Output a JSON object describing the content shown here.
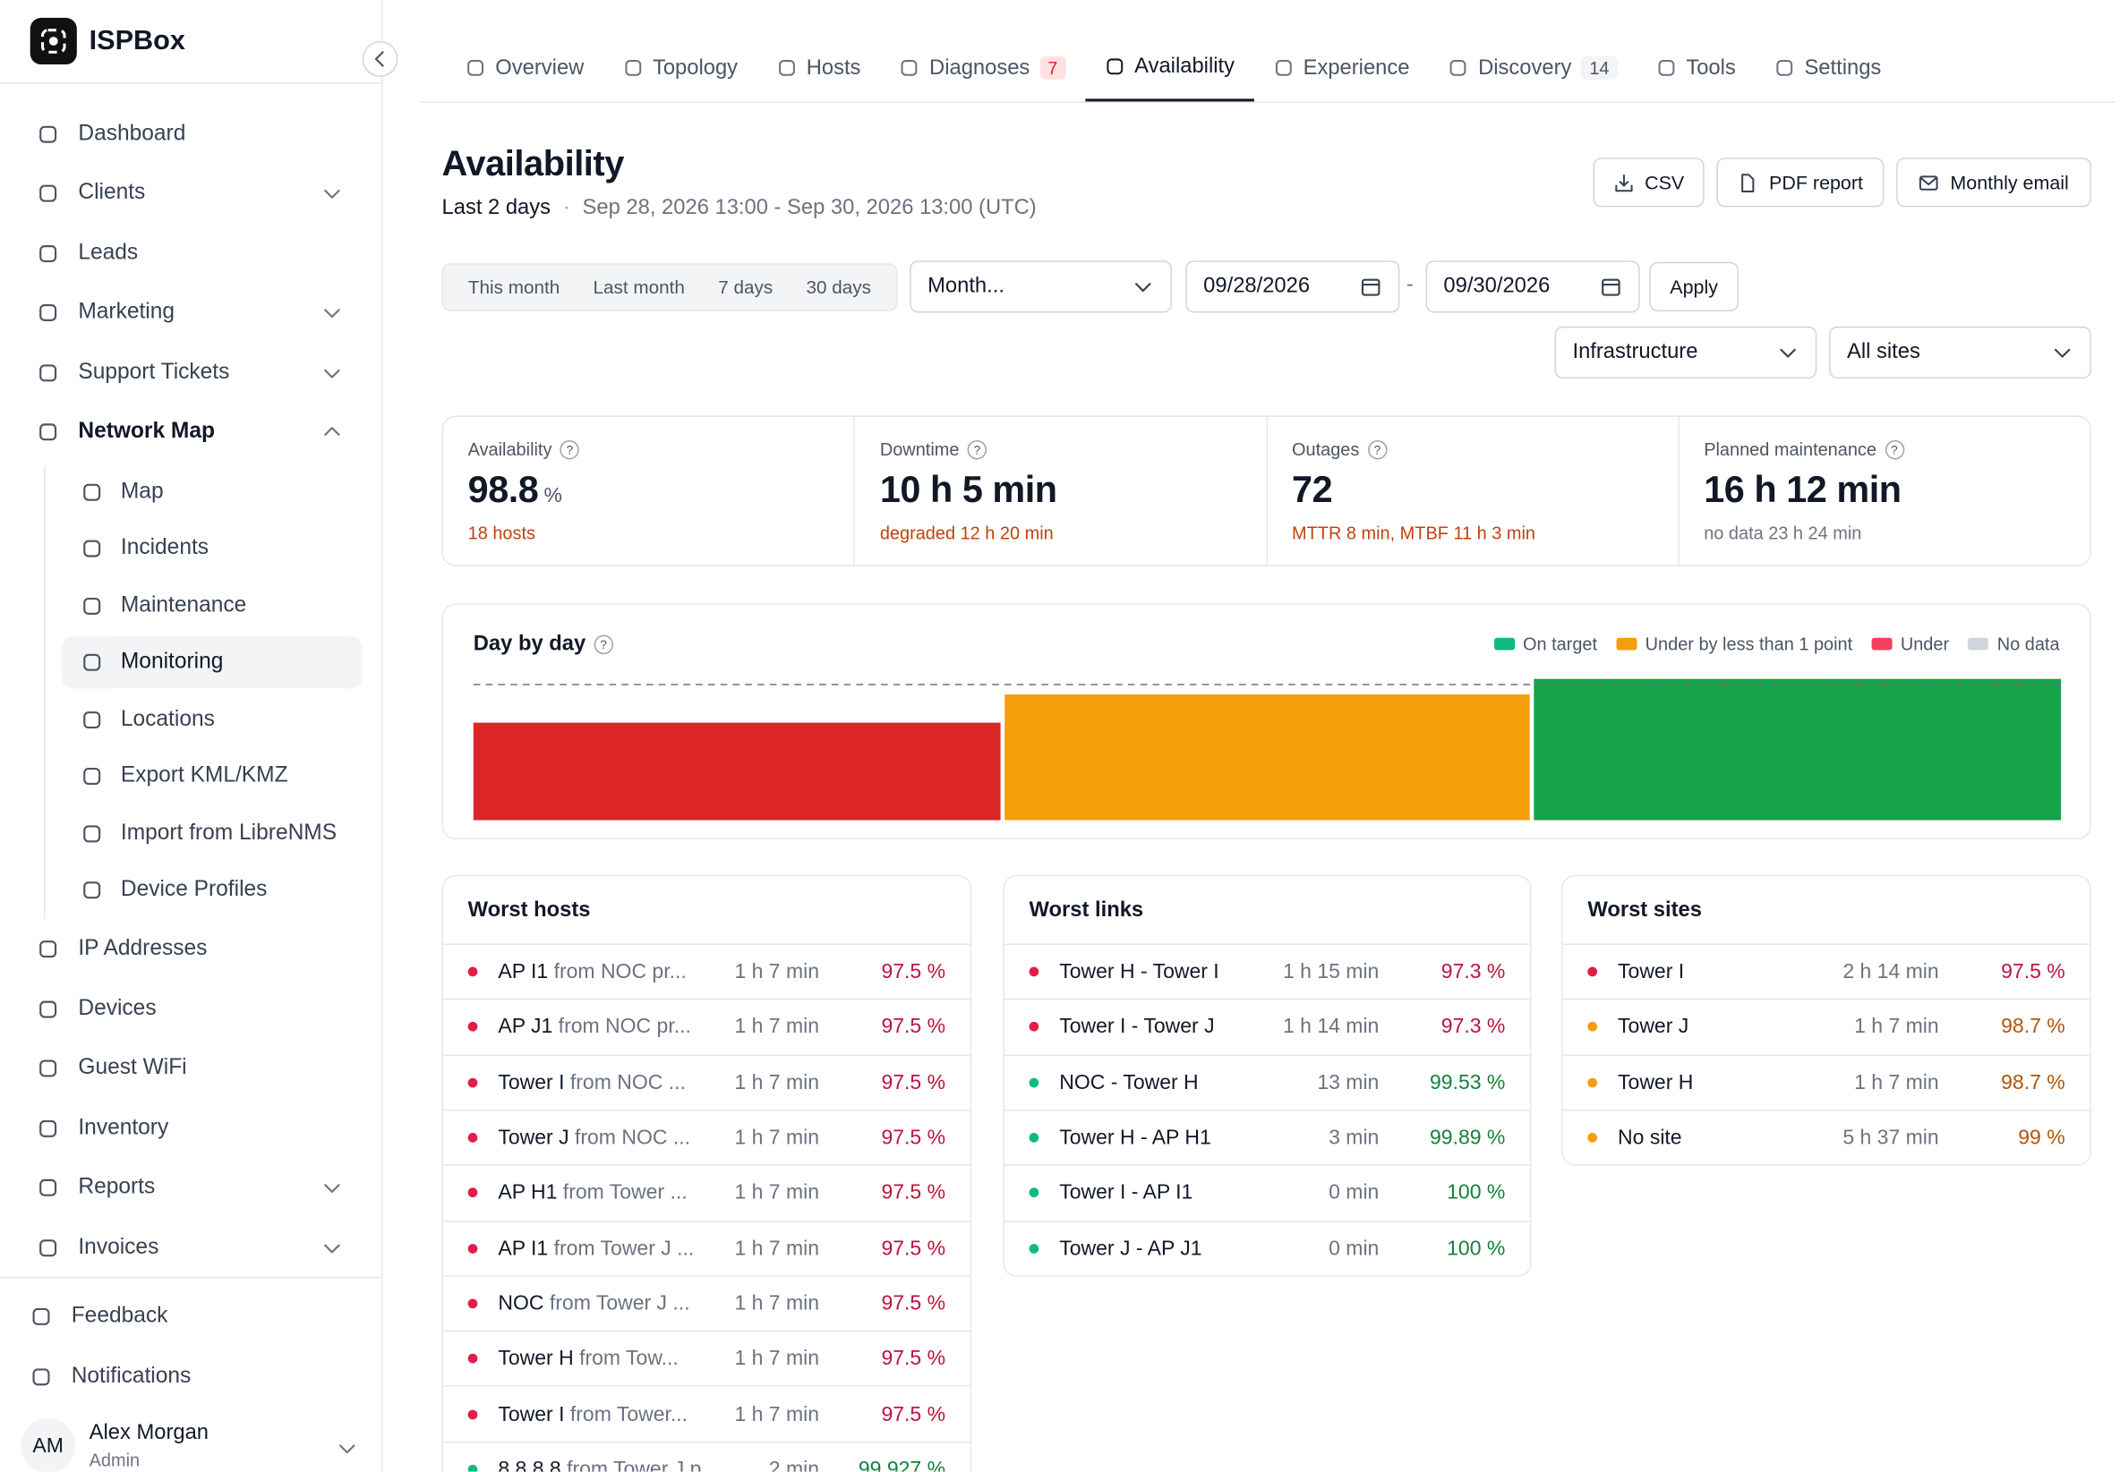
{
  "brand": "ISPBox",
  "nav": [
    {
      "label": "Dashboard"
    },
    {
      "label": "Clients",
      "expandable": true
    },
    {
      "label": "Leads"
    },
    {
      "label": "Marketing",
      "expandable": true
    },
    {
      "label": "Support Tickets",
      "expandable": true
    },
    {
      "label": "Network Map",
      "expandable": true,
      "expanded": true,
      "children": [
        {
          "label": "Map"
        },
        {
          "label": "Incidents"
        },
        {
          "label": "Maintenance"
        },
        {
          "label": "Monitoring",
          "active": true
        },
        {
          "label": "Locations"
        },
        {
          "label": "Export KML/KMZ"
        },
        {
          "label": "Import from LibreNMS"
        },
        {
          "label": "Device Profiles"
        }
      ]
    },
    {
      "label": "IP Addresses"
    },
    {
      "label": "Devices"
    },
    {
      "label": "Guest WiFi"
    },
    {
      "label": "Inventory"
    },
    {
      "label": "Reports",
      "expandable": true
    },
    {
      "label": "Invoices",
      "expandable": true
    }
  ],
  "footer_nav": [
    "Feedback",
    "Notifications"
  ],
  "user": {
    "initials": "AM",
    "name": "Alex Morgan",
    "role": "Admin"
  },
  "tabs": [
    {
      "label": "Overview"
    },
    {
      "label": "Topology"
    },
    {
      "label": "Hosts"
    },
    {
      "label": "Diagnoses",
      "badge": "7",
      "badge_tone": "red"
    },
    {
      "label": "Availability",
      "active": true
    },
    {
      "label": "Experience"
    },
    {
      "label": "Discovery",
      "badge": "14",
      "badge_tone": "gray"
    },
    {
      "label": "Tools"
    },
    {
      "label": "Settings"
    }
  ],
  "header": {
    "title": "Availability",
    "range_label": "Last 2 days",
    "separator": "·",
    "range": "Sep 28, 2026 13:00 - Sep 30, 2026 13:00 (UTC)"
  },
  "actions": [
    "CSV",
    "PDF report",
    "Monthly email"
  ],
  "filters": {
    "presets": [
      "This month",
      "Last month",
      "7 days",
      "30 days"
    ],
    "period_select": "Month...",
    "date_from": "09/28/2026",
    "date_separator": "-",
    "date_to": "09/30/2026",
    "apply": "Apply",
    "scope": "Infrastructure",
    "site": "All sites"
  },
  "help_icon": "?",
  "kpis": [
    {
      "label": "Availability",
      "value": "98.8",
      "unit": "%",
      "note": "18 hosts",
      "note_color": "#c2410c"
    },
    {
      "label": "Downtime",
      "value": "10 h 5 min",
      "note": "degraded 12 h 20 min",
      "note_color": "#c2410c"
    },
    {
      "label": "Outages",
      "value": "72",
      "note": "MTTR 8 min, MTBF 11 h 3 min",
      "note_color": "#c2410c"
    },
    {
      "label": "Planned maintenance",
      "value": "16 h 12 min",
      "note": "no data 23 h 24 min",
      "note_color": "#6b7280"
    }
  ],
  "chart_data": {
    "type": "bar",
    "title": "Day by day",
    "categories": [
      null,
      null,
      null
    ],
    "values": [
      96.9,
      98.9,
      100
    ],
    "colors": [
      "#dc2626",
      "#f59e0b",
      "#16a34a"
    ],
    "ylim": [
      90,
      100
    ],
    "target": 99.6,
    "legend": [
      {
        "name": "On target",
        "color": "#10b981"
      },
      {
        "name": "Under by less than 1 point",
        "color": "#f59e0b"
      },
      {
        "name": "Under",
        "color": "#f43f5e"
      },
      {
        "name": "No data",
        "color": "#d1d5db"
      }
    ]
  },
  "tables": [
    {
      "title": "Worst hosts",
      "rows": [
        {
          "name": "AP I1",
          "detail": "from NOC pr...",
          "duration": "1 h 7 min",
          "value": "97.5 %",
          "status": "red"
        },
        {
          "name": "AP J1",
          "detail": "from NOC pr...",
          "duration": "1 h 7 min",
          "value": "97.5 %",
          "status": "red"
        },
        {
          "name": "Tower I",
          "detail": "from NOC ...",
          "duration": "1 h 7 min",
          "value": "97.5 %",
          "status": "red"
        },
        {
          "name": "Tower J",
          "detail": "from NOC ...",
          "duration": "1 h 7 min",
          "value": "97.5 %",
          "status": "red"
        },
        {
          "name": "AP H1",
          "detail": "from Tower ...",
          "duration": "1 h 7 min",
          "value": "97.5 %",
          "status": "red"
        },
        {
          "name": "AP I1",
          "detail": "from Tower J ...",
          "duration": "1 h 7 min",
          "value": "97.5 %",
          "status": "red"
        },
        {
          "name": "NOC",
          "detail": "from Tower J ...",
          "duration": "1 h 7 min",
          "value": "97.5 %",
          "status": "red"
        },
        {
          "name": "Tower H",
          "detail": "from Tow...",
          "duration": "1 h 7 min",
          "value": "97.5 %",
          "status": "red"
        },
        {
          "name": "Tower I",
          "detail": "from Tower...",
          "duration": "1 h 7 min",
          "value": "97.5 %",
          "status": "red"
        },
        {
          "name": "8.8.8.8",
          "detail": "from Tower J p...",
          "duration": "2 min",
          "value": "99.927 %",
          "status": "green"
        }
      ]
    },
    {
      "title": "Worst links",
      "rows": [
        {
          "name": "Tower H - Tower I",
          "duration": "1 h 15 min",
          "value": "97.3 %",
          "status": "red"
        },
        {
          "name": "Tower I - Tower J",
          "duration": "1 h 14 min",
          "value": "97.3 %",
          "status": "red"
        },
        {
          "name": "NOC - Tower H",
          "duration": "13 min",
          "value": "99.53 %",
          "status": "green"
        },
        {
          "name": "Tower H - AP H1",
          "duration": "3 min",
          "value": "99.89 %",
          "status": "green"
        },
        {
          "name": "Tower I - AP I1",
          "duration": "0 min",
          "value": "100 %",
          "status": "green"
        },
        {
          "name": "Tower J - AP J1",
          "duration": "0 min",
          "value": "100 %",
          "status": "green"
        }
      ]
    },
    {
      "title": "Worst sites",
      "rows": [
        {
          "name": "Tower I",
          "duration": "2 h 14 min",
          "value": "97.5 %",
          "status": "red"
        },
        {
          "name": "Tower J",
          "duration": "1 h 7 min",
          "value": "98.7 %",
          "status": "orange"
        },
        {
          "name": "Tower H",
          "duration": "1 h 7 min",
          "value": "98.7 %",
          "status": "orange"
        },
        {
          "name": "No site",
          "duration": "5 h 37 min",
          "value": "99 %",
          "status": "orange"
        }
      ]
    }
  ]
}
